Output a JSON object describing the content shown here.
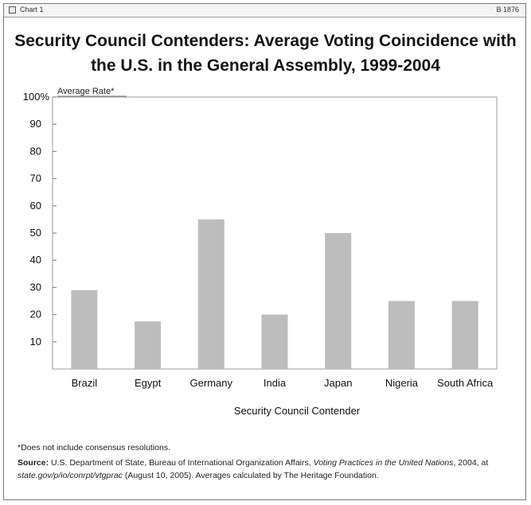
{
  "window": {
    "label": "Chart 1",
    "id": "B 1876"
  },
  "chart_data": {
    "type": "bar",
    "title_lines": [
      "Security Council Contenders: Average Voting Coincidence with",
      "the U.S. in the  General Assembly, 1999-2004"
    ],
    "ylabel": "Average Rate*",
    "xlabel": "Security Council Contender",
    "categories": [
      "Brazil",
      "Egypt",
      "Germany",
      "India",
      "Japan",
      "Nigeria",
      "South Africa"
    ],
    "values": [
      29,
      17.5,
      55,
      20,
      50,
      25,
      25
    ],
    "ylim": [
      0,
      100
    ],
    "yticks": [
      10,
      20,
      30,
      40,
      50,
      60,
      70,
      80,
      90,
      100
    ],
    "ytick_labels": [
      "10",
      "20",
      "30",
      "40",
      "50",
      "60",
      "70",
      "80",
      "90",
      "100%"
    ],
    "bar_color": "#bdbdbd",
    "grid": false
  },
  "notes": {
    "footnote": "*Does not include consensus resolutions.",
    "source_label": "Source:",
    "source_text": " U.S. Department of State, Bureau of International Organization Affairs, ",
    "source_italic": "Voting Practices in the United Nations",
    "source_text2": ", 2004, at ",
    "source_url": "state.gov/p/io/conrpt/vtgprac",
    "source_text3": " (August 10, 2005). Averages calculated by The Heritage Foundation."
  }
}
